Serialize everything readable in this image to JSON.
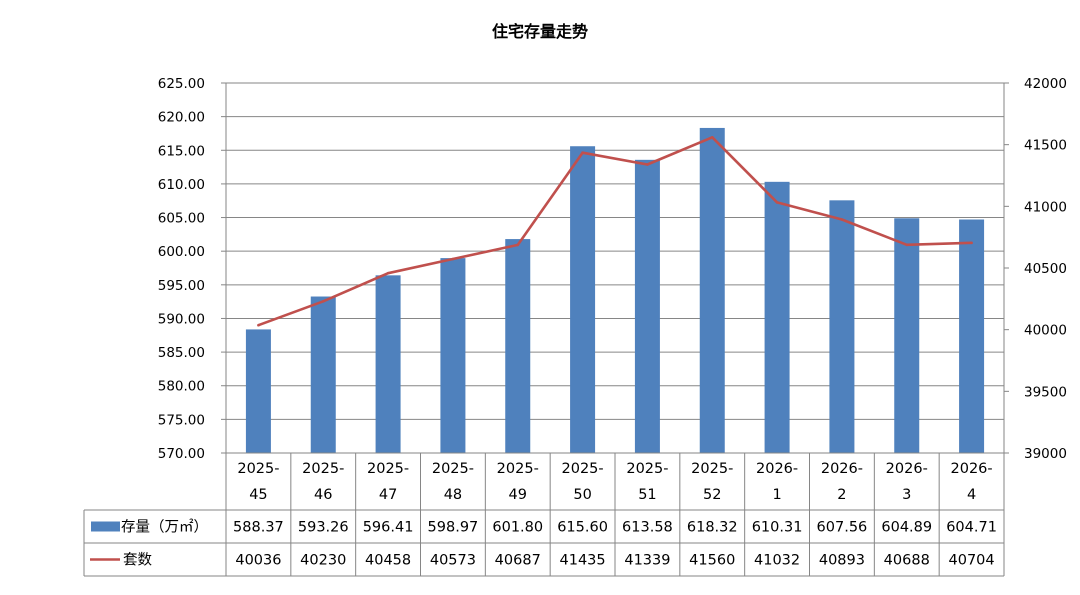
{
  "chart_data": {
    "type": "bar",
    "title": "住宅存量走势",
    "categories": [
      "2025-45",
      "2025-46",
      "2025-47",
      "2025-48",
      "2025-49",
      "2025-50",
      "2025-51",
      "2025-52",
      "2026-1",
      "2026-2",
      "2026-3",
      "2026-4"
    ],
    "category_lines": [
      [
        "2025-",
        "45"
      ],
      [
        "2025-",
        "46"
      ],
      [
        "2025-",
        "47"
      ],
      [
        "2025-",
        "48"
      ],
      [
        "2025-",
        "49"
      ],
      [
        "2025-",
        "50"
      ],
      [
        "2025-",
        "51"
      ],
      [
        "2025-",
        "52"
      ],
      [
        "2026-",
        "1"
      ],
      [
        "2026-",
        "2"
      ],
      [
        "2026-",
        "3"
      ],
      [
        "2026-",
        "4"
      ]
    ],
    "series": [
      {
        "name": "存量（万㎡）",
        "type": "bar",
        "axis": "left",
        "color": "#4F81BD",
        "values": [
          588.37,
          593.26,
          596.41,
          598.97,
          601.8,
          615.6,
          613.58,
          618.32,
          610.31,
          607.56,
          604.89,
          604.71
        ],
        "labels": [
          "588.37",
          "593.26",
          "596.41",
          "598.97",
          "601.80",
          "615.60",
          "613.58",
          "618.32",
          "610.31",
          "607.56",
          "604.89",
          "604.71"
        ]
      },
      {
        "name": "套数",
        "type": "line",
        "axis": "right",
        "color": "#C0504D",
        "values": [
          40036,
          40230,
          40458,
          40573,
          40687,
          41435,
          41339,
          41560,
          41032,
          40893,
          40688,
          40704
        ],
        "labels": [
          "40036",
          "40230",
          "40458",
          "40573",
          "40687",
          "41435",
          "41339",
          "41560",
          "41032",
          "40893",
          "40688",
          "40704"
        ]
      }
    ],
    "y_left": {
      "min": 570,
      "max": 625,
      "step": 5,
      "ticks": [
        "570.00",
        "575.00",
        "580.00",
        "585.00",
        "590.00",
        "595.00",
        "600.00",
        "605.00",
        "610.00",
        "615.00",
        "620.00",
        "625.00"
      ]
    },
    "y_right": {
      "min": 39000,
      "max": 42000,
      "step": 500,
      "ticks": [
        "39000",
        "39500",
        "40000",
        "40500",
        "41000",
        "41500",
        "42000"
      ]
    },
    "grid": true,
    "legend": "data-table"
  }
}
